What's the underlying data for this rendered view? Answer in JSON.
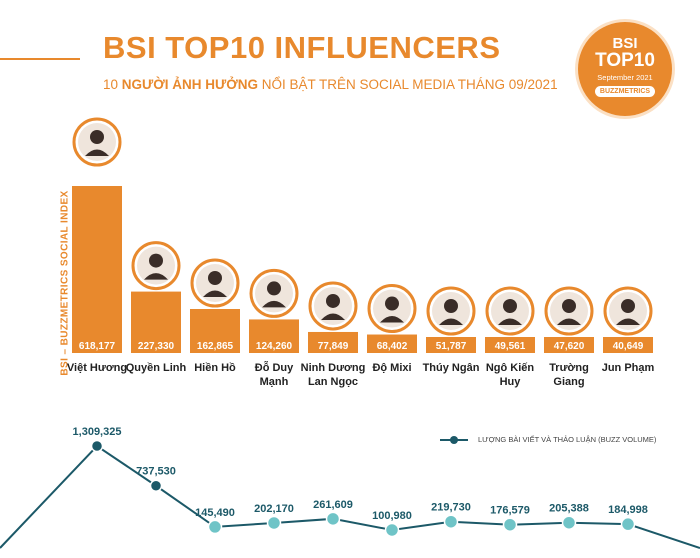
{
  "header": {
    "title": "BSI TOP10 INFLUENCERS",
    "subtitle_part1": "10 ",
    "subtitle_bold": "NGƯỜI ẢNH HƯỞNG",
    "subtitle_part2": " NỔI BẬT TRÊN SOCIAL MEDIA THÁNG 09/2021"
  },
  "badge": {
    "line1": "BSI",
    "line2": "TOP10",
    "line3": "September 2021",
    "line4": "BUZZMETRICS"
  },
  "side_label": "BSI – BUZZMETRICS SOCIAL INDEX",
  "legend": {
    "line_label": "LƯỢNG BÀI VIẾT VÀ THẢO LUẬN (BUZZ VOLUME)"
  },
  "colors": {
    "bar": "#e8892d",
    "line": "#1c5968",
    "marker": "#6fc4c7",
    "text": "#222222"
  },
  "avatar_icon": "person-avatar-icon",
  "chart_data": [
    {
      "type": "bar",
      "categories": [
        [
          "Việt Hương"
        ],
        [
          "Quyền Linh"
        ],
        [
          "Hiền Hồ"
        ],
        [
          "Đỗ Duy",
          "Mạnh"
        ],
        [
          "Ninh Dương",
          "Lan Ngọc"
        ],
        [
          "Độ Mixi"
        ],
        [
          "Thúy Ngân"
        ],
        [
          "Ngô Kiến",
          "Huy"
        ],
        [
          "Trường",
          "Giang"
        ],
        [
          "Jun Phạm"
        ]
      ],
      "values": [
        618177,
        227330,
        162865,
        124260,
        77849,
        68402,
        51787,
        49561,
        47620,
        40649
      ],
      "value_labels": [
        "618,177",
        "227,330",
        "162,865",
        "124,260",
        "77,849",
        "68,402",
        "51,787",
        "49,561",
        "47,620",
        "40,649"
      ],
      "ylim": [
        0,
        618177
      ],
      "grid": false
    },
    {
      "type": "line",
      "x": [
        "Việt Hương",
        "Quyền Linh",
        "Hiền Hồ",
        "Đỗ Duy Mạnh",
        "Ninh Dương Lan Ngọc",
        "Độ Mixi",
        "Thúy Ngân",
        "Ngô Kiến Huy",
        "Trường Giang",
        "Jun Phạm"
      ],
      "series": [
        {
          "name": "LƯỢNG BÀI VIẾT VÀ THẢO LUẬN (BUZZ VOLUME)",
          "values": [
            1309325,
            737530,
            145490,
            202170,
            261609,
            100980,
            219730,
            176579,
            205388,
            184998
          ],
          "value_labels": [
            "1,309,325",
            "737,530",
            "145,490",
            "202,170",
            "261,609",
            "100,980",
            "219,730",
            "176,579",
            "205,388",
            "184,998"
          ]
        }
      ],
      "legend": "top-right",
      "grid": false
    }
  ]
}
